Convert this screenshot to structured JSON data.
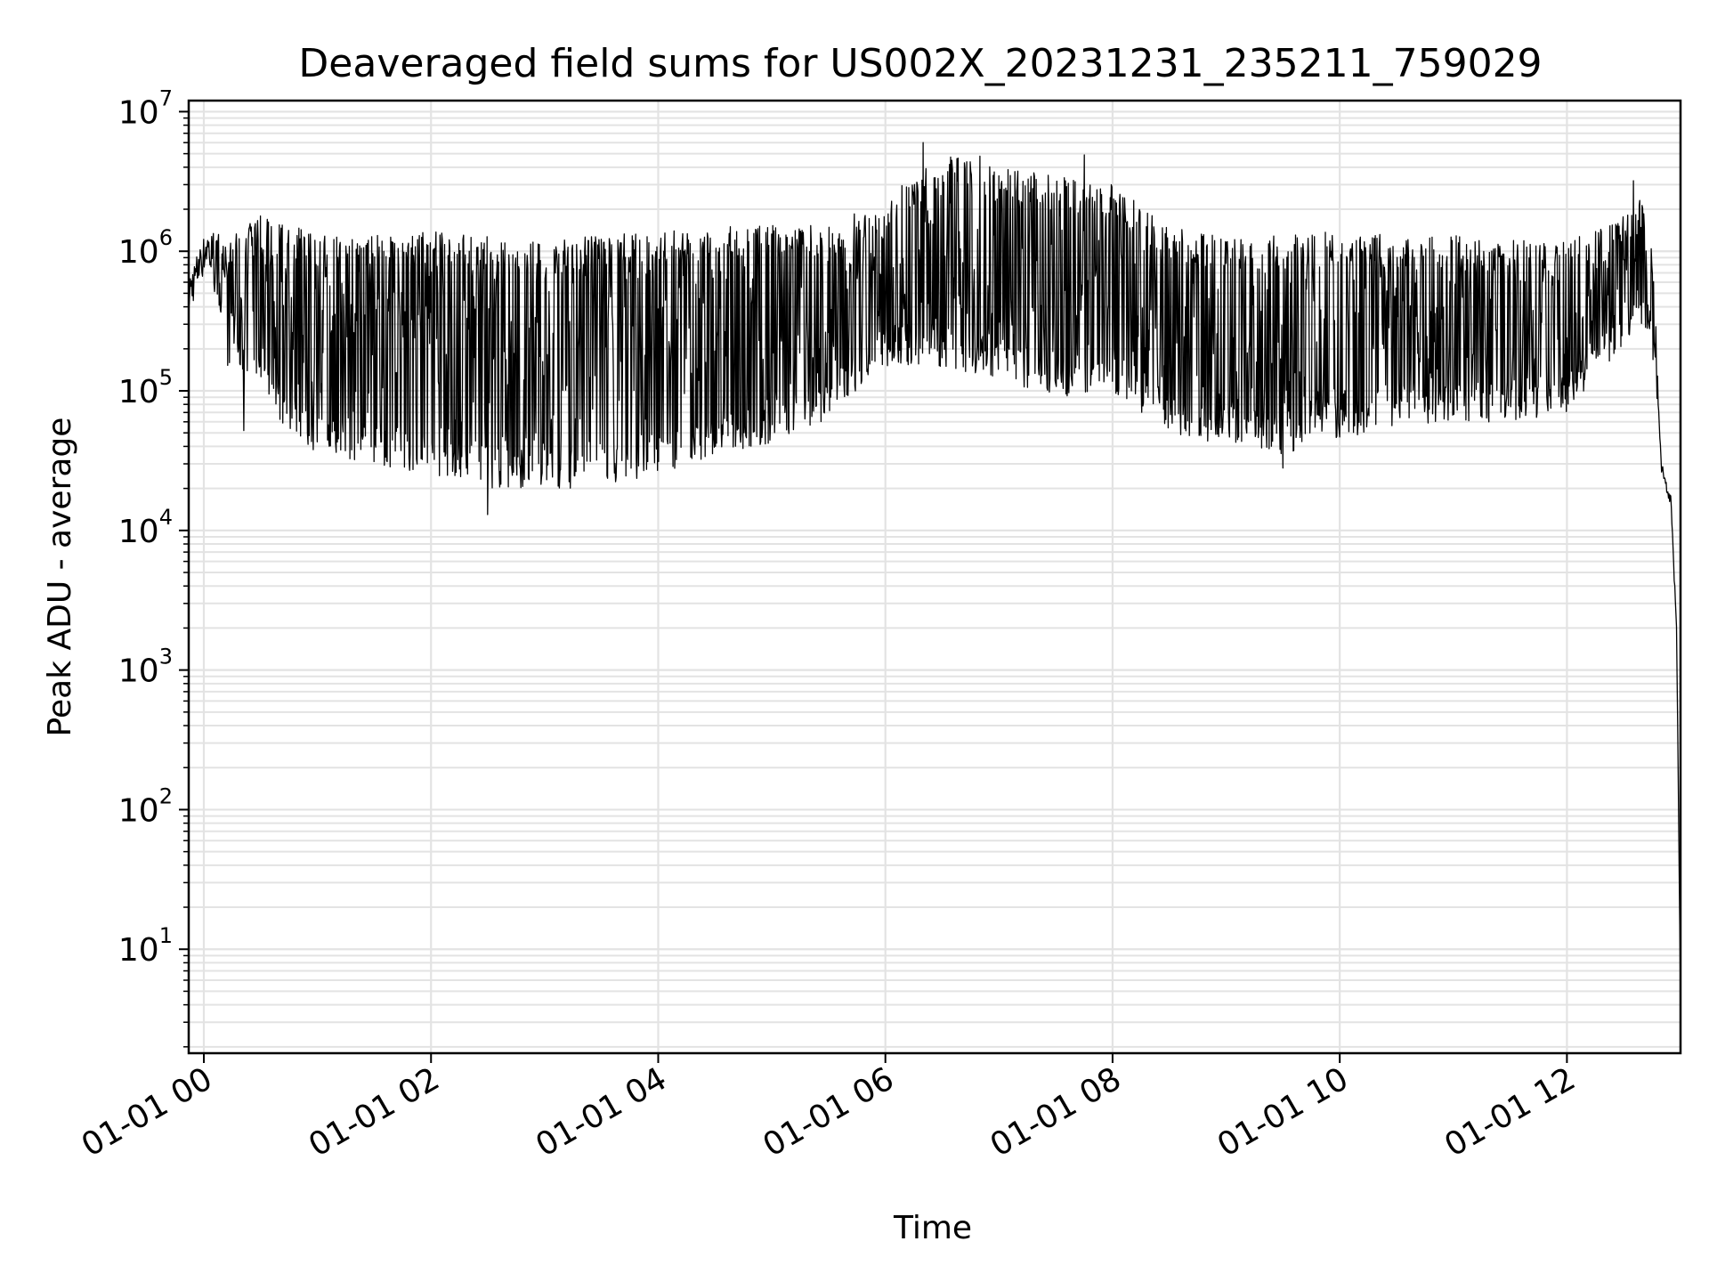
{
  "chart_data": {
    "type": "line",
    "title": "Deaveraged field sums for US002X_20231231_235211_759029",
    "xlabel": "Time",
    "ylabel": "Peak ADU - average",
    "y_scale": "log",
    "ylim": [
      1.8,
      12000000
    ],
    "xlim": [
      "2023-12-31 23:52",
      "2024-01-01 13:00"
    ],
    "grid": "on",
    "line_color": "#000000",
    "grid_color": "#e3e3e3",
    "x_ticks": [
      {
        "value": "2024-01-01 00:00",
        "label": "01-01 00"
      },
      {
        "value": "2024-01-01 02:00",
        "label": "01-01 02"
      },
      {
        "value": "2024-01-01 04:00",
        "label": "01-01 04"
      },
      {
        "value": "2024-01-01 06:00",
        "label": "01-01 06"
      },
      {
        "value": "2024-01-01 08:00",
        "label": "01-01 08"
      },
      {
        "value": "2024-01-01 10:00",
        "label": "01-01 10"
      },
      {
        "value": "2024-01-01 12:00",
        "label": "01-01 12"
      }
    ],
    "y_ticks": [
      {
        "value": 10,
        "base": "10",
        "exp": "1"
      },
      {
        "value": 100,
        "base": "10",
        "exp": "2"
      },
      {
        "value": 1000,
        "base": "10",
        "exp": "3"
      },
      {
        "value": 10000,
        "base": "10",
        "exp": "4"
      },
      {
        "value": 100000,
        "base": "10",
        "exp": "5"
      },
      {
        "value": 1000000,
        "base": "10",
        "exp": "6"
      },
      {
        "value": 10000000,
        "base": "10",
        "exp": "7"
      }
    ],
    "series": [
      {
        "envelope": [
          {
            "t": "2023-12-31 23:52",
            "low": 350000,
            "high": 700000
          },
          {
            "t": "2024-01-01 00:02",
            "low": 800000,
            "high": 1500000
          },
          {
            "t": "2024-01-01 00:12",
            "low": 150000,
            "high": 1200000
          },
          {
            "t": "2024-01-01 00:30",
            "low": 120000,
            "high": 1800000
          },
          {
            "t": "2024-01-01 00:45",
            "low": 45000,
            "high": 1600000
          },
          {
            "t": "2024-01-01 01:00",
            "low": 35000,
            "high": 1300000
          },
          {
            "t": "2024-01-01 01:30",
            "low": 30000,
            "high": 1300000
          },
          {
            "t": "2024-01-01 02:00",
            "low": 25000,
            "high": 1400000
          },
          {
            "t": "2024-01-01 02:30",
            "low": 20000,
            "high": 1300000
          },
          {
            "t": "2024-01-01 03:00",
            "low": 20000,
            "high": 1200000
          },
          {
            "t": "2024-01-01 03:30",
            "low": 20000,
            "high": 1300000
          },
          {
            "t": "2024-01-01 04:00",
            "low": 25000,
            "high": 1400000
          },
          {
            "t": "2024-01-01 04:30",
            "low": 35000,
            "high": 1500000
          },
          {
            "t": "2024-01-01 05:00",
            "low": 40000,
            "high": 1600000
          },
          {
            "t": "2024-01-01 05:30",
            "low": 60000,
            "high": 1500000
          },
          {
            "t": "2024-01-01 06:00",
            "low": 150000,
            "high": 2500000
          },
          {
            "t": "2024-01-01 06:30",
            "low": 150000,
            "high": 5000000
          },
          {
            "t": "2024-01-01 07:00",
            "low": 120000,
            "high": 4000000
          },
          {
            "t": "2024-01-01 07:30",
            "low": 90000,
            "high": 3500000
          },
          {
            "t": "2024-01-01 08:00",
            "low": 100000,
            "high": 3000000
          },
          {
            "t": "2024-01-01 08:30",
            "low": 50000,
            "high": 1500000
          },
          {
            "t": "2024-01-01 09:00",
            "low": 40000,
            "high": 1300000
          },
          {
            "t": "2024-01-01 09:30",
            "low": 35000,
            "high": 1300000
          },
          {
            "t": "2024-01-01 10:00",
            "low": 45000,
            "high": 1400000
          },
          {
            "t": "2024-01-01 10:30",
            "low": 55000,
            "high": 1300000
          },
          {
            "t": "2024-01-01 11:00",
            "low": 60000,
            "high": 1300000
          },
          {
            "t": "2024-01-01 11:30",
            "low": 60000,
            "high": 1200000
          },
          {
            "t": "2024-01-01 12:00",
            "low": 70000,
            "high": 1200000
          },
          {
            "t": "2024-01-01 12:20",
            "low": 150000,
            "high": 1500000
          },
          {
            "t": "2024-01-01 12:40",
            "low": 300000,
            "high": 2500000
          },
          {
            "t": "2024-01-01 12:45",
            "low": 200000,
            "high": 1200000
          },
          {
            "t": "2024-01-01 12:50",
            "low": 20000,
            "high": 40000
          },
          {
            "t": "2024-01-01 12:55",
            "low": 10000,
            "high": 25000
          },
          {
            "t": "2024-01-01 12:58",
            "low": 1000,
            "high": 3000
          },
          {
            "t": "2024-01-01 13:00",
            "low": 3.5,
            "high": 5
          }
        ],
        "spikes": [
          {
            "t": "2024-01-01 00:21",
            "value": 52000
          },
          {
            "t": "2024-01-01 06:20",
            "value": 6000000
          },
          {
            "t": "2024-01-01 06:50",
            "value": 4800000
          },
          {
            "t": "2024-01-01 07:45",
            "value": 4900000
          },
          {
            "t": "2024-01-01 02:30",
            "value": 13000
          },
          {
            "t": "2024-01-01 09:30",
            "value": 28000
          },
          {
            "t": "2024-01-01 12:35",
            "value": 3200000
          }
        ]
      }
    ]
  }
}
